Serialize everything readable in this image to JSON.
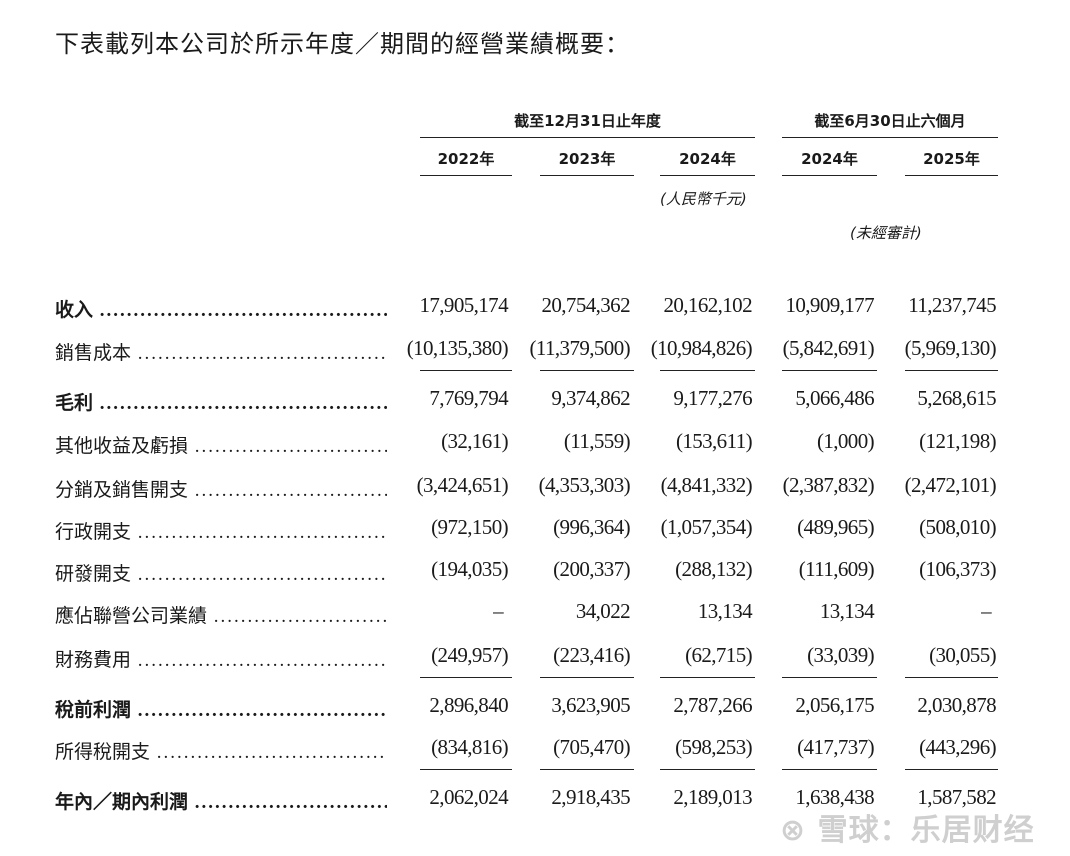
{
  "title": "下表載列本公司於所示年度／期間的經營業績概要：",
  "header": {
    "group_annual": "截至12月31日止年度",
    "group_interim": "截至6月30日止六個月",
    "years": [
      "2022年",
      "2023年",
      "2024年",
      "2024年",
      "2025年"
    ],
    "unit": "(人民幣千元)",
    "unaudited": "(未經審計)"
  },
  "rows": [
    {
      "label": "收入",
      "bold": true,
      "values": [
        "17,905,174",
        "20,754,362",
        "20,162,102",
        "10,909,177",
        "11,237,745"
      ]
    },
    {
      "label": "銷售成本",
      "bold": false,
      "values": [
        "(10,135,380)",
        "(11,379,500)",
        "(10,984,826)",
        "(5,842,691)",
        "(5,969,130)"
      ],
      "underline": true
    },
    {
      "label": "毛利",
      "bold": true,
      "values": [
        "7,769,794",
        "9,374,862",
        "9,177,276",
        "5,066,486",
        "5,268,615"
      ]
    },
    {
      "label": "其他收益及虧損",
      "bold": false,
      "values": [
        "(32,161)",
        "(11,559)",
        "(153,611)",
        "(1,000)",
        "(121,198)"
      ]
    },
    {
      "label": "分銷及銷售開支",
      "bold": false,
      "values": [
        "(3,424,651)",
        "(4,353,303)",
        "(4,841,332)",
        "(2,387,832)",
        "(2,472,101)"
      ]
    },
    {
      "label": "行政開支",
      "bold": false,
      "values": [
        "(972,150)",
        "(996,364)",
        "(1,057,354)",
        "(489,965)",
        "(508,010)"
      ]
    },
    {
      "label": "研發開支",
      "bold": false,
      "values": [
        "(194,035)",
        "(200,337)",
        "(288,132)",
        "(111,609)",
        "(106,373)"
      ]
    },
    {
      "label": "應佔聯營公司業績",
      "bold": false,
      "values": [
        "–",
        "34,022",
        "13,134",
        "13,134",
        "–"
      ]
    },
    {
      "label": "財務費用",
      "bold": false,
      "values": [
        "(249,957)",
        "(223,416)",
        "(62,715)",
        "(33,039)",
        "(30,055)"
      ],
      "underline": true
    },
    {
      "label": "稅前利潤",
      "bold": true,
      "values": [
        "2,896,840",
        "3,623,905",
        "2,787,266",
        "2,056,175",
        "2,030,878"
      ]
    },
    {
      "label": "所得稅開支",
      "bold": false,
      "values": [
        "(834,816)",
        "(705,470)",
        "(598,253)",
        "(417,737)",
        "(443,296)"
      ],
      "underline": true
    },
    {
      "label": "年內／期內利潤",
      "bold": true,
      "values": [
        "2,062,024",
        "2,918,435",
        "2,189,013",
        "1,638,438",
        "1,587,582"
      ]
    }
  ],
  "watermark": "雪球：乐居财经"
}
